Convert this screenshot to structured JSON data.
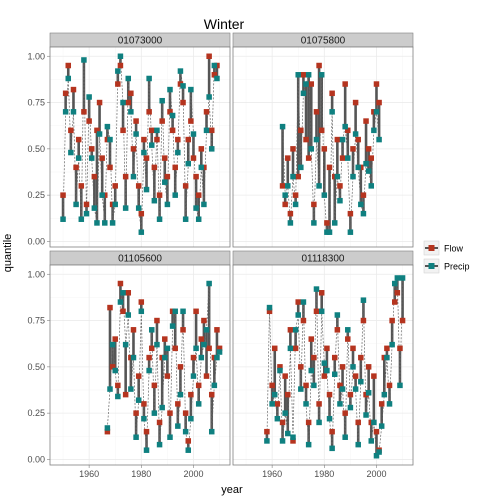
{
  "chart_data": {
    "type": "line",
    "title": "Winter",
    "xlabel": "year",
    "ylabel": "quantile",
    "xlim": [
      1945,
      2014
    ],
    "ylim": [
      -0.03,
      1.05
    ],
    "xticks": [
      1960,
      1980,
      2000
    ],
    "xtick_labels": [
      "1960",
      "1980",
      "2000"
    ],
    "yticks": [
      0,
      0.25,
      0.5,
      0.75,
      1
    ],
    "ytick_labels": [
      "0.00",
      "0.25",
      "0.50",
      "0.75",
      "1.00"
    ],
    "grid": true,
    "legend": {
      "position": "right",
      "entries": [
        "Flow",
        "Precip"
      ]
    },
    "colors": {
      "Flow": "#b5341f",
      "Precip": "#0f8080",
      "segment": "#555555",
      "precip_line": "#666666",
      "strip_bg": "#cccccc",
      "panel_border": "#7f7f7f",
      "grid": "#ebebeb"
    },
    "panels": [
      {
        "id": "01073000",
        "years": [
          1950,
          1951,
          1952,
          1953,
          1954,
          1955,
          1956,
          1957,
          1958,
          1959,
          1960,
          1961,
          1962,
          1963,
          1964,
          1965,
          1966,
          1967,
          1968,
          1969,
          1970,
          1971,
          1972,
          1973,
          1974,
          1975,
          1976,
          1977,
          1978,
          1979,
          1980,
          1981,
          1982,
          1983,
          1984,
          1985,
          1986,
          1987,
          1988,
          1989,
          1990,
          1991,
          1992,
          1993,
          1994,
          1995,
          1996,
          1997,
          1998,
          1999,
          2000,
          2001,
          2002,
          2003,
          2004,
          2005,
          2006,
          2007,
          2008,
          2009
        ],
        "flow": [
          0.25,
          0.8,
          0.95,
          0.6,
          0.82,
          0.4,
          0.55,
          0.3,
          0.7,
          0.2,
          0.65,
          0.5,
          0.35,
          0.6,
          0.75,
          0.45,
          0.25,
          0.55,
          0.4,
          0.2,
          0.3,
          0.85,
          0.95,
          0.6,
          0.35,
          0.75,
          0.8,
          0.5,
          0.65,
          0.3,
          0.15,
          0.55,
          0.45,
          0.7,
          0.6,
          0.4,
          0.55,
          0.25,
          0.65,
          0.45,
          0.35,
          0.7,
          0.6,
          0.4,
          0.55,
          0.85,
          0.75,
          0.3,
          0.55,
          0.65,
          0.45,
          0.35,
          0.25,
          0.5,
          0.4,
          0.7,
          1.0,
          0.6,
          0.9,
          0.95
        ],
        "precip": [
          0.12,
          0.7,
          0.88,
          0.48,
          0.7,
          0.2,
          0.45,
          0.12,
          0.98,
          0.15,
          0.78,
          0.45,
          0.18,
          0.1,
          0.58,
          0.25,
          0.1,
          0.62,
          0.55,
          0.1,
          0.2,
          0.92,
          1.0,
          0.75,
          0.18,
          0.88,
          0.7,
          0.35,
          0.58,
          0.18,
          0.05,
          0.48,
          0.28,
          0.88,
          0.52,
          0.22,
          0.6,
          0.12,
          0.76,
          0.32,
          0.2,
          0.82,
          0.68,
          0.25,
          0.48,
          0.92,
          0.84,
          0.12,
          0.42,
          0.82,
          0.58,
          0.18,
          0.12,
          0.4,
          0.2,
          0.6,
          0.78,
          0.5,
          0.95,
          0.88
        ]
      },
      {
        "id": "01075800",
        "years": [
          1964,
          1965,
          1966,
          1967,
          1968,
          1969,
          1970,
          1971,
          1972,
          1973,
          1974,
          1975,
          1976,
          1977,
          1978,
          1979,
          1980,
          1981,
          1982,
          1983,
          1984,
          1985,
          1986,
          1987,
          1988,
          1989,
          1990,
          1991,
          1992,
          1993,
          1994,
          1995,
          1996,
          1997,
          1998,
          1999,
          2000,
          2001
        ],
        "flow": [
          0.3,
          0.2,
          0.45,
          0.15,
          0.5,
          0.25,
          0.35,
          0.6,
          0.9,
          0.55,
          0.45,
          0.85,
          0.2,
          0.7,
          0.95,
          0.6,
          0.5,
          0.1,
          0.4,
          0.8,
          0.35,
          0.55,
          0.3,
          0.45,
          0.85,
          0.6,
          0.15,
          0.5,
          0.75,
          0.55,
          0.4,
          0.25,
          0.65,
          0.5,
          0.45,
          0.7,
          0.85,
          0.75
        ],
        "precip": [
          0.62,
          0.25,
          0.3,
          0.1,
          0.35,
          0.2,
          0.9,
          0.4,
          0.8,
          0.85,
          0.9,
          0.5,
          0.1,
          0.55,
          0.3,
          0.9,
          0.25,
          0.05,
          0.05,
          0.7,
          0.1,
          0.35,
          0.22,
          0.55,
          0.62,
          0.45,
          0.05,
          0.35,
          0.58,
          0.4,
          0.2,
          0.15,
          0.42,
          0.38,
          0.3,
          0.6,
          0.7,
          0.55
        ]
      },
      {
        "id": "01105600",
        "years": [
          1967,
          1968,
          1969,
          1970,
          1971,
          1972,
          1973,
          1974,
          1975,
          1976,
          1977,
          1978,
          1979,
          1980,
          1981,
          1982,
          1983,
          1984,
          1985,
          1986,
          1987,
          1988,
          1989,
          1990,
          1991,
          1992,
          1993,
          1994,
          1995,
          1996,
          1997,
          1998,
          1999,
          2000,
          2001,
          2002,
          2003,
          2004,
          2005,
          2006,
          2007,
          2008,
          2009,
          2010
        ],
        "flow": [
          0.15,
          0.82,
          0.5,
          0.65,
          0.4,
          0.95,
          0.8,
          0.35,
          0.9,
          0.55,
          0.7,
          0.25,
          0.45,
          0.85,
          0.3,
          0.15,
          0.55,
          0.6,
          0.4,
          0.75,
          0.2,
          0.55,
          0.65,
          0.45,
          0.25,
          0.8,
          0.6,
          0.3,
          0.5,
          0.7,
          0.25,
          0.1,
          0.35,
          0.55,
          0.8,
          0.4,
          0.65,
          0.75,
          0.45,
          0.6,
          0.35,
          0.55,
          0.7,
          0.6
        ],
        "precip": [
          0.17,
          0.38,
          0.62,
          0.48,
          0.34,
          0.85,
          0.9,
          0.62,
          0.78,
          0.38,
          0.55,
          0.12,
          0.32,
          0.8,
          0.22,
          0.05,
          0.48,
          0.7,
          0.25,
          0.62,
          0.08,
          0.28,
          0.55,
          0.6,
          0.12,
          0.72,
          0.8,
          0.18,
          0.35,
          0.8,
          0.15,
          0.05,
          0.22,
          0.45,
          0.6,
          0.3,
          0.55,
          0.62,
          0.7,
          0.95,
          0.15,
          0.4,
          0.55,
          0.58
        ]
      },
      {
        "id": "01118300",
        "years": [
          1958,
          1959,
          1960,
          1961,
          1962,
          1963,
          1964,
          1965,
          1966,
          1967,
          1968,
          1969,
          1970,
          1971,
          1972,
          1973,
          1974,
          1975,
          1976,
          1977,
          1978,
          1979,
          1980,
          1981,
          1982,
          1983,
          1984,
          1985,
          1986,
          1987,
          1988,
          1989,
          1990,
          1991,
          1992,
          1993,
          1994,
          1995,
          1996,
          1997,
          1998,
          1999,
          2000,
          2001,
          2002,
          2003,
          2004,
          2005,
          2006,
          2007,
          2008,
          2009,
          2010
        ],
        "flow": [
          0.15,
          0.8,
          0.4,
          0.6,
          0.3,
          0.5,
          0.2,
          0.45,
          0.35,
          0.7,
          0.1,
          0.6,
          0.85,
          0.5,
          0.75,
          0.4,
          0.2,
          0.65,
          0.55,
          0.8,
          0.3,
          0.9,
          0.45,
          0.6,
          0.35,
          0.15,
          0.55,
          0.7,
          0.4,
          0.5,
          0.25,
          0.65,
          0.35,
          0.6,
          0.45,
          0.2,
          0.55,
          0.75,
          0.35,
          0.5,
          0.2,
          0.45,
          0.15,
          0.05,
          0.3,
          0.55,
          0.6,
          0.4,
          0.75,
          0.85,
          0.9,
          0.6,
          0.75
        ],
        "precip": [
          0.1,
          0.82,
          0.3,
          0.35,
          0.22,
          0.48,
          0.1,
          0.25,
          0.14,
          0.6,
          0.12,
          0.7,
          0.78,
          0.38,
          0.85,
          0.3,
          0.08,
          0.48,
          0.4,
          0.92,
          0.2,
          0.8,
          0.52,
          0.48,
          0.22,
          0.06,
          0.46,
          0.78,
          0.3,
          0.38,
          0.12,
          0.7,
          0.28,
          0.5,
          0.38,
          0.08,
          0.42,
          0.86,
          0.24,
          0.36,
          0.1,
          0.2,
          0.02,
          0.04,
          0.18,
          0.35,
          0.55,
          0.3,
          0.62,
          0.95,
          0.98,
          0.4,
          0.98
        ]
      }
    ]
  }
}
